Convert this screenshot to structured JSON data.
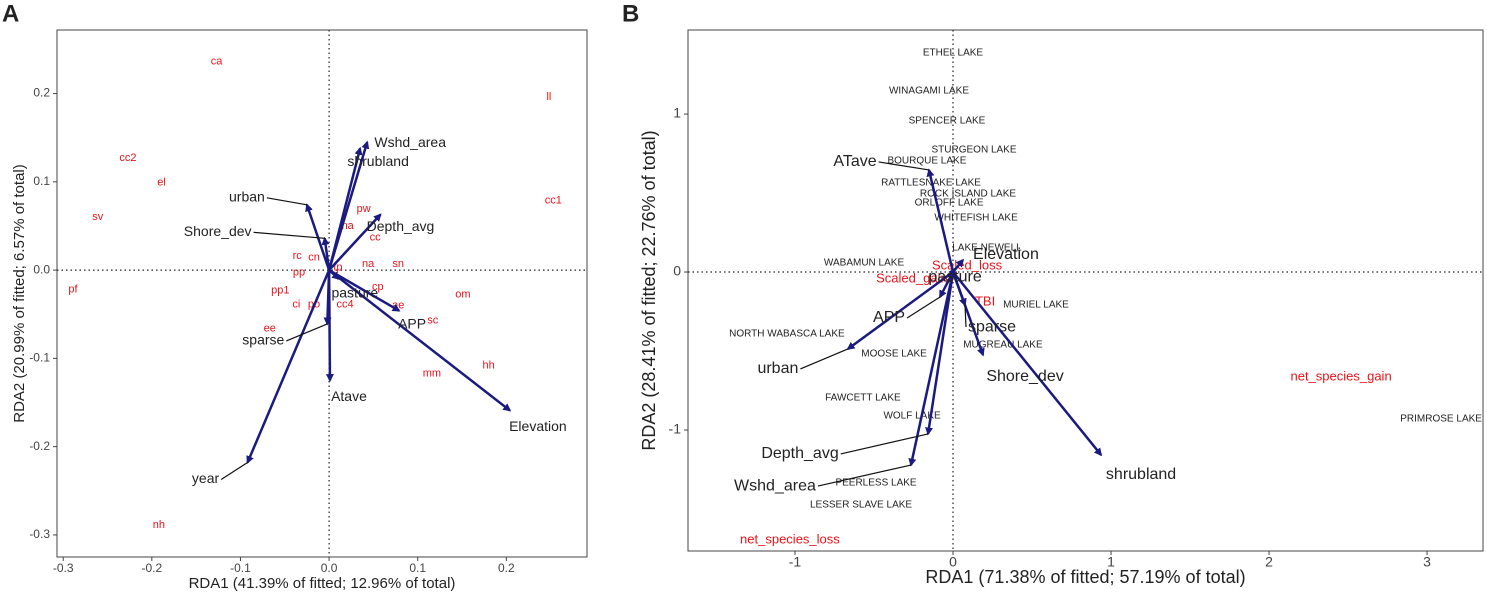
{
  "chart_data": [
    {
      "type": "biplot",
      "panel": "A",
      "xlabel": "RDA1 (41.39% of fitted; 12.96% of total)",
      "ylabel": "RDA2 (20.99% of fitted; 6.57% of total)",
      "xlim": [
        -0.307,
        0.291
      ],
      "ylim": [
        -0.325,
        0.272
      ],
      "xticks": [
        -0.3,
        -0.2,
        -0.1,
        {
          "value": 0,
          "label": "0.0"
        },
        0.1,
        0.2
      ],
      "yticks": [
        -0.3,
        -0.2,
        -0.1,
        {
          "value": 0,
          "label": "0.0"
        },
        0.1,
        0.2
      ],
      "arrows": {
        "color": "#1a1a80",
        "labels": [
          "Wshd_area",
          "shrubland",
          "urban",
          "Depth_avg",
          "Shore_dev",
          "pasture",
          "APP",
          "sparse",
          "Atave",
          "Elevation",
          "year"
        ],
        "x": [
          0.043,
          0.035,
          -0.025,
          0.058,
          -0.005,
          0.011,
          0.079,
          -0.002,
          0.001,
          0.204,
          -0.092
        ],
        "y": [
          0.145,
          0.138,
          0.074,
          0.063,
          0.036,
          -0.01,
          -0.046,
          -0.061,
          -0.125,
          -0.159,
          -0.218
        ]
      },
      "points": [
        {
          "color": "#e8141c",
          "labels": [
            "ca",
            "ll",
            "cc2",
            "el",
            "cc1",
            "sv",
            "pw",
            "na",
            "cc",
            "rc",
            "cn",
            "tp",
            "na",
            "sn",
            "pp",
            "pf",
            "cp",
            "pp1",
            "om",
            "ci",
            "po",
            "cc4",
            "ae",
            "sc",
            "ee",
            "hh",
            "mm",
            "nh"
          ],
          "x": [
            -0.127,
            0.248,
            -0.227,
            -0.189,
            0.253,
            -0.261,
            0.039,
            0.021,
            0.052,
            -0.036,
            -0.017,
            0.01,
            0.044,
            0.078,
            -0.034,
            -0.289,
            0.055,
            -0.055,
            0.151,
            -0.037,
            -0.017,
            0.018,
            0.078,
            0.117,
            -0.067,
            0.18,
            0.116,
            -0.192
          ],
          "y": [
            0.236,
            0.196,
            0.127,
            0.099,
            0.079,
            0.06,
            0.069,
            0.05,
            0.037,
            0.016,
            0.014,
            0.003,
            0.007,
            0.007,
            -0.003,
            -0.022,
            -0.019,
            -0.023,
            -0.028,
            -0.039,
            -0.039,
            -0.039,
            -0.04,
            -0.057,
            -0.066,
            -0.108,
            -0.117,
            -0.289
          ]
        }
      ]
    },
    {
      "type": "biplot",
      "panel": "B",
      "xlabel": "RDA1 (71.38% of fitted; 57.19% of total)",
      "ylabel": "RDA2 (28.41% of fitted; 22.76% of total)",
      "xlim": [
        -1.677,
        3.354
      ],
      "ylim": [
        -1.766,
        1.532
      ],
      "xticks": [
        -1,
        0,
        1,
        2,
        3
      ],
      "yticks": [
        -1,
        0,
        1
      ],
      "arrows": {
        "color": "#1a1a80",
        "labels": [
          "ATave",
          "Elevation",
          "pasture",
          "APP",
          "sparse",
          "urban",
          "Shore_dev",
          "shrubland",
          "Depth_avg",
          "Wshd_area"
        ],
        "x": [
          -0.152,
          0.063,
          0.013,
          -0.082,
          0.076,
          -0.665,
          0.19,
          0.937,
          -0.158,
          -0.266
        ],
        "y": [
          0.646,
          0.076,
          -0.02,
          -0.158,
          -0.209,
          -0.487,
          -0.525,
          -1.158,
          -1.025,
          -1.222
        ]
      },
      "points": [
        {
          "color": "#e8141c",
          "labels": [
            "Scaled_loss",
            "Scaled_gain",
            "TBI",
            "net_species_gain",
            "net_species_loss"
          ],
          "x": [
            0.089,
            -0.26,
            0.203,
            2.456,
            -1.032
          ],
          "y": [
            0.038,
            -0.044,
            -0.19,
            -0.665,
            -1.696
          ]
        },
        {
          "color": "#222222",
          "labels": [
            "ETHEL LAKE",
            "WINAGAMI LAKE",
            "SPENCER LAKE",
            "STURGEON LAKE",
            "BOURQUE LAKE",
            "RATTLESNAKE LAKE",
            "ROCK ISLAND LAKE",
            "ORLOFF LAKE",
            "WHITEFISH LAKE",
            "LAKE NEWELL",
            "WABAMUN LAKE",
            "MURIEL LAKE",
            "NORTH WABASCA LAKE",
            "MUGREAU LAKE",
            "MOOSE LAKE",
            "FAWCETT LAKE",
            "WOLF LAKE",
            "PRIMROSE LAKE",
            "PEERLESS LAKE",
            "LESSER SLAVE LAKE"
          ],
          "x": [
            0,
            -0.152,
            -0.038,
            0.133,
            -0.165,
            -0.139,
            0.095,
            -0.025,
            0.146,
            0.215,
            -0.563,
            0.525,
            -1.051,
            0.316,
            -0.373,
            -0.57,
            -0.259,
            3.089,
            -0.487,
            -0.582
          ],
          "y": [
            1.386,
            1.146,
            0.956,
            0.772,
            0.703,
            0.563,
            0.494,
            0.437,
            0.342,
            0.152,
            0.057,
            -0.209,
            -0.392,
            -0.462,
            -0.519,
            -0.797,
            -0.911,
            -0.93,
            -1.335,
            -1.475
          ]
        }
      ]
    }
  ]
}
